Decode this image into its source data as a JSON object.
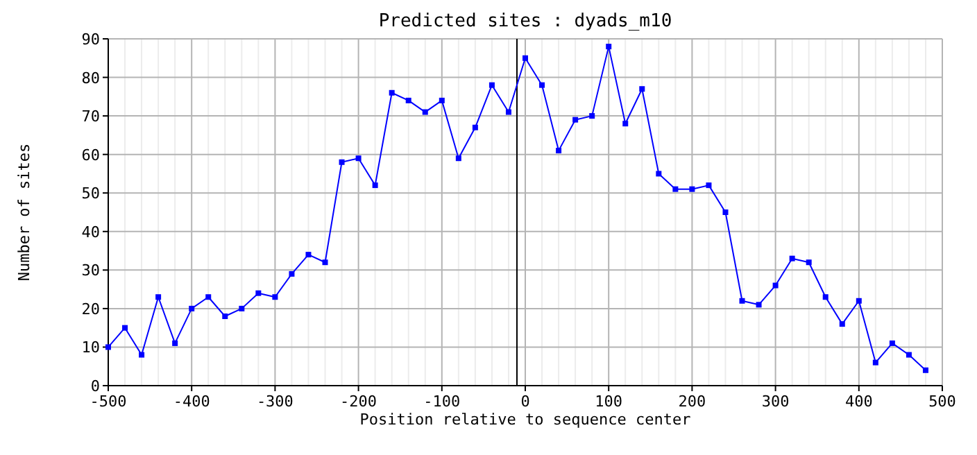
{
  "chart_data": {
    "type": "line",
    "title": "Predicted sites : dyads_m10",
    "xlabel": "Position relative to sequence center",
    "ylabel": "Number of sites",
    "x": [
      -500,
      -480,
      -460,
      -440,
      -420,
      -400,
      -380,
      -360,
      -340,
      -320,
      -300,
      -280,
      -260,
      -240,
      -220,
      -200,
      -180,
      -160,
      -140,
      -120,
      -100,
      -80,
      -60,
      -40,
      -20,
      0,
      20,
      40,
      60,
      80,
      100,
      120,
      140,
      160,
      180,
      200,
      220,
      240,
      260,
      280,
      300,
      320,
      340,
      360,
      380,
      400,
      420,
      440,
      460,
      480
    ],
    "series": [
      {
        "color": "#0000ff",
        "values": [
          10,
          15,
          8,
          23,
          11,
          20,
          23,
          18,
          20,
          24,
          23,
          29,
          34,
          32,
          58,
          59,
          52,
          76,
          74,
          71,
          74,
          59,
          67,
          78,
          71,
          85,
          78,
          61,
          69,
          70,
          88,
          68,
          77,
          55,
          51,
          51,
          52,
          45,
          22,
          21,
          26,
          33,
          32,
          23,
          16,
          22,
          6,
          11,
          8,
          4
        ]
      }
    ],
    "xlim": [
      -500,
      500
    ],
    "ylim": [
      0,
      90
    ],
    "xticks": [
      -500,
      {
        "value": -480,
        "label": null
      },
      {
        "value": -460,
        "label": null
      },
      {
        "value": -440,
        "label": null
      },
      {
        "value": -420,
        "label": null
      },
      -400,
      {
        "value": -380,
        "label": null
      },
      {
        "value": -360,
        "label": null
      },
      {
        "value": -340,
        "label": null
      },
      {
        "value": -320,
        "label": null
      },
      -300,
      {
        "value": -280,
        "label": null
      },
      {
        "value": -260,
        "label": null
      },
      {
        "value": -240,
        "label": null
      },
      {
        "value": -220,
        "label": null
      },
      -200,
      {
        "value": -180,
        "label": null
      },
      {
        "value": -160,
        "label": null
      },
      {
        "value": -140,
        "label": null
      },
      {
        "value": -120,
        "label": null
      },
      -100,
      {
        "value": -80,
        "label": null
      },
      {
        "value": -60,
        "label": null
      },
      {
        "value": -40,
        "label": null
      },
      {
        "value": -20,
        "label": null
      },
      0,
      {
        "value": 20,
        "label": null
      },
      {
        "value": 40,
        "label": null
      },
      {
        "value": 60,
        "label": null
      },
      {
        "value": 80,
        "label": null
      },
      100,
      {
        "value": 120,
        "label": null
      },
      {
        "value": 140,
        "label": null
      },
      {
        "value": 160,
        "label": null
      },
      {
        "value": 180,
        "label": null
      },
      200,
      {
        "value": 220,
        "label": null
      },
      {
        "value": 240,
        "label": null
      },
      {
        "value": 260,
        "label": null
      },
      {
        "value": 280,
        "label": null
      },
      300,
      {
        "value": 320,
        "label": null
      },
      {
        "value": 340,
        "label": null
      },
      {
        "value": 360,
        "label": null
      },
      {
        "value": 380,
        "label": null
      },
      400,
      {
        "value": 420,
        "label": null
      },
      {
        "value": 440,
        "label": null
      },
      {
        "value": 460,
        "label": null
      },
      {
        "value": 480,
        "label": null
      },
      500
    ],
    "yticks": [
      0,
      10,
      20,
      30,
      40,
      50,
      60,
      70,
      80,
      90
    ],
    "ref_lines": [
      {
        "axis": "x",
        "value": -10,
        "color": "#000000"
      }
    ],
    "grid": true,
    "marker": "square",
    "line_style": "solid"
  }
}
